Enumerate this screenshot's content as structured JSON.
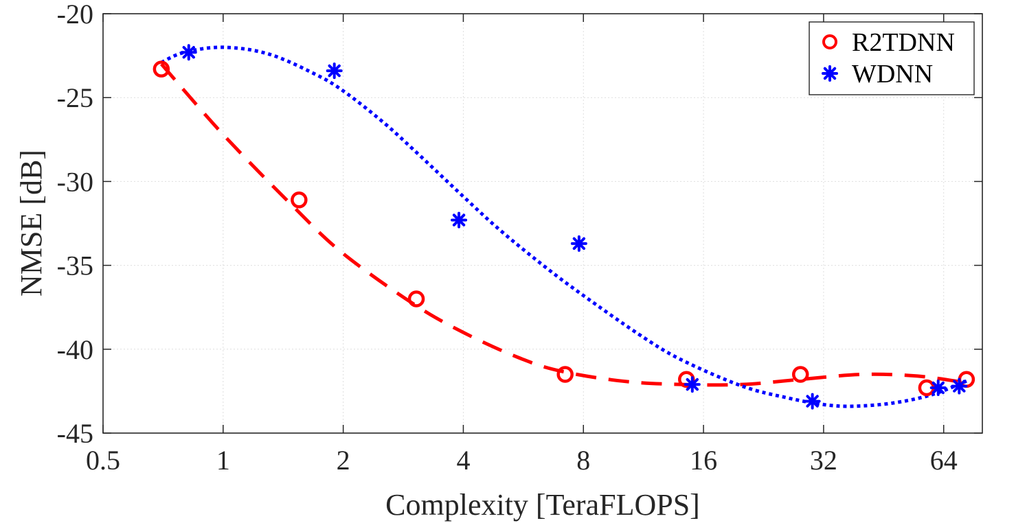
{
  "chart_data": {
    "type": "scatter",
    "title": "",
    "xlabel": "Complexity [TeraFLOPS]",
    "ylabel": "NMSE [dB]",
    "xscale": "log2",
    "xlim": [
      0.5,
      80
    ],
    "ylim": [
      -45,
      -20
    ],
    "xticks": [
      0.5,
      1,
      2,
      4,
      8,
      16,
      32,
      64
    ],
    "xtick_labels": [
      "0.5",
      "1",
      "2",
      "4",
      "8",
      "16",
      "32",
      "64"
    ],
    "yticks": [
      -20,
      -25,
      -30,
      -35,
      -40,
      -45
    ],
    "ytick_labels": [
      "-20",
      "-25",
      "-30",
      "-35",
      "-40",
      "-45"
    ],
    "grid": true,
    "legend_position": "top-right",
    "series": [
      {
        "name": "R2TDNN",
        "marker": "circle",
        "fit_line": "dashed",
        "color": "#ff0000",
        "x": [
          0.7,
          1.55,
          3.05,
          7.2,
          14.5,
          28,
          58,
          73
        ],
        "y": [
          -23.3,
          -31.1,
          -37.0,
          -41.5,
          -41.8,
          -41.5,
          -42.3,
          -41.8
        ],
        "fit_x": [
          0.7,
          1.0,
          1.5,
          2.0,
          3.0,
          4.0,
          5.5,
          7.0,
          10.0,
          14.0,
          20.0,
          28.0,
          40.0,
          55.0,
          73.0
        ],
        "fit_y": [
          -23.0,
          -27.2,
          -31.5,
          -34.3,
          -37.3,
          -39.0,
          -40.5,
          -41.3,
          -41.9,
          -42.1,
          -42.1,
          -41.8,
          -41.5,
          -41.6,
          -42.0
        ]
      },
      {
        "name": "WDNN",
        "marker": "asterisk",
        "fit_line": "dotted",
        "color": "#0000ff",
        "x": [
          0.82,
          1.9,
          3.9,
          7.8,
          15,
          30,
          62,
          70
        ],
        "y": [
          -22.3,
          -23.4,
          -32.3,
          -33.7,
          -42.1,
          -43.1,
          -42.3,
          -42.2
        ],
        "fit_x": [
          0.7,
          0.8,
          1.0,
          1.3,
          1.7,
          2.0,
          2.5,
          3.0,
          4.0,
          5.0,
          6.5,
          8.0,
          11.0,
          14.0,
          20.0,
          26.0,
          32.0,
          38.0,
          48.0,
          60.0,
          73.0
        ],
        "fit_y": [
          -22.9,
          -22.3,
          -22.0,
          -22.4,
          -23.6,
          -24.6,
          -26.4,
          -28.1,
          -30.9,
          -33.0,
          -35.2,
          -36.8,
          -39.1,
          -40.6,
          -42.2,
          -42.9,
          -43.3,
          -43.4,
          -43.2,
          -42.7,
          -41.9
        ]
      }
    ]
  }
}
